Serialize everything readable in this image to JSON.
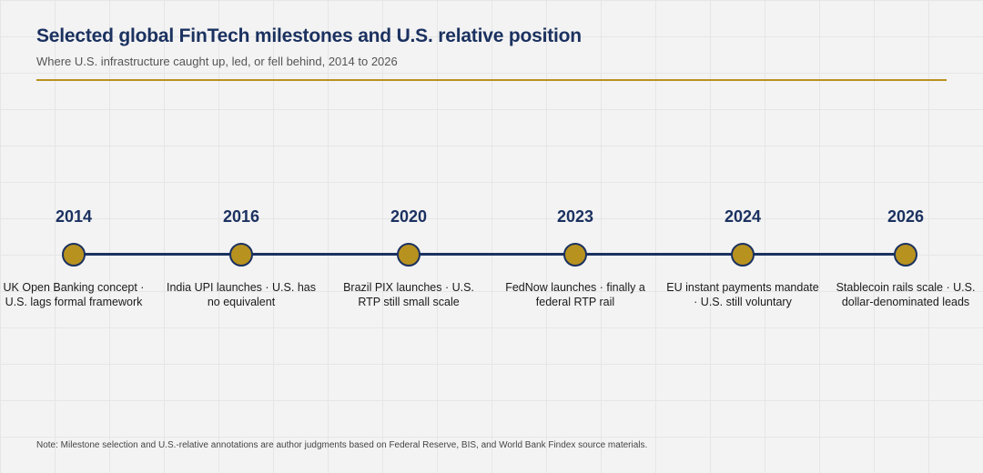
{
  "header": {
    "title": "Selected global FinTech milestones and U.S. relative position",
    "subtitle": "Where U.S. infrastructure caught up, led, or fell behind, 2014 to 2026"
  },
  "colors": {
    "navy": "#1b3160",
    "gold": "#b8921f",
    "background": "#f3f3f3"
  },
  "milestones": [
    {
      "year": "2014",
      "text": "UK Open Banking concept · U.S. lags formal framework"
    },
    {
      "year": "2016",
      "text": "India UPI launches · U.S. has no equivalent"
    },
    {
      "year": "2020",
      "text": "Brazil PIX launches · U.S. RTP still small scale"
    },
    {
      "year": "2023",
      "text": "FedNow launches · finally a federal RTP rail"
    },
    {
      "year": "2024",
      "text": "EU instant payments mandate · U.S. still voluntary"
    },
    {
      "year": "2026",
      "text": "Stablecoin rails scale · U.S. dollar-denominated leads"
    }
  ],
  "footer": {
    "note": "Note: Milestone selection and U.S.-relative annotations are author judgments based on Federal Reserve, BIS, and World Bank Findex source materials."
  }
}
